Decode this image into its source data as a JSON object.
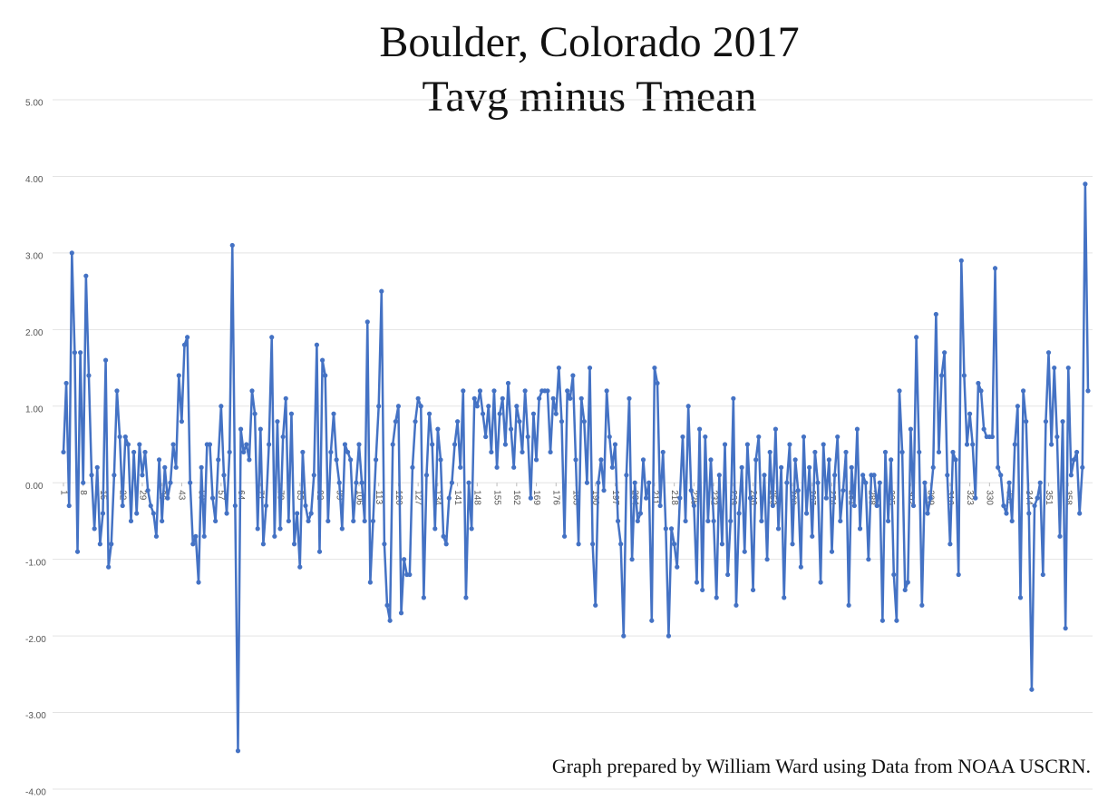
{
  "chart_data": {
    "type": "line",
    "title": [
      "Boulder, Colorado 2017",
      "Tavg minus Tmean"
    ],
    "annotation": "Graph prepared by William Ward using Data from NOAA USCRN.",
    "x": [
      1,
      2,
      3,
      4,
      5,
      6,
      7,
      8,
      9,
      10,
      11,
      12,
      13,
      14,
      15,
      16,
      17,
      18,
      19,
      20,
      21,
      22,
      23,
      24,
      25,
      26,
      27,
      28,
      29,
      30,
      31,
      32,
      33,
      34,
      35,
      36,
      37,
      38,
      39,
      40,
      41,
      42,
      43,
      44,
      45,
      46,
      47,
      48,
      49,
      50,
      51,
      52,
      53,
      54,
      55,
      56,
      57,
      58,
      59,
      60,
      61,
      62,
      63,
      64,
      65,
      66,
      67,
      68,
      69,
      70,
      71,
      72,
      73,
      74,
      75,
      76,
      77,
      78,
      79,
      80,
      81,
      82,
      83,
      84,
      85,
      86,
      87,
      88,
      89,
      90,
      91,
      92,
      93,
      94,
      95,
      96,
      97,
      98,
      99,
      100,
      101,
      102,
      103,
      104,
      105,
      106,
      107,
      108,
      109,
      110,
      111,
      112,
      113,
      114,
      115,
      116,
      117,
      118,
      119,
      120,
      121,
      122,
      123,
      124,
      125,
      126,
      127,
      128,
      129,
      130,
      131,
      132,
      133,
      134,
      135,
      136,
      137,
      138,
      139,
      140,
      141,
      142,
      143,
      144,
      145,
      146,
      147,
      148,
      149,
      150,
      151,
      152,
      153,
      154,
      155,
      156,
      157,
      158,
      159,
      160,
      161,
      162,
      163,
      164,
      165,
      166,
      167,
      168,
      169,
      170,
      171,
      172,
      173,
      174,
      175,
      176,
      177,
      178,
      179,
      180,
      181,
      182,
      183,
      184,
      185,
      186,
      187,
      188,
      189,
      190,
      191,
      192,
      193,
      194,
      195,
      196,
      197,
      198,
      199,
      200,
      201,
      202,
      203,
      204,
      205,
      206,
      207,
      208,
      209,
      210,
      211,
      212,
      213,
      214,
      215,
      216,
      217,
      218,
      219,
      220,
      221,
      222,
      223,
      224,
      225,
      226,
      227,
      228,
      229,
      230,
      231,
      232,
      233,
      234,
      235,
      236,
      237,
      238,
      239,
      240,
      241,
      242,
      243,
      244,
      245,
      246,
      247,
      248,
      249,
      250,
      251,
      252,
      253,
      254,
      255,
      256,
      257,
      258,
      259,
      260,
      261,
      262,
      263,
      264,
      265,
      266,
      267,
      268,
      269,
      270,
      271,
      272,
      273,
      274,
      275,
      276,
      277,
      278,
      279,
      280,
      281,
      282,
      283,
      284,
      285,
      286,
      287,
      288,
      289,
      290,
      291,
      292,
      293,
      294,
      295,
      296,
      297,
      298,
      299,
      300,
      301,
      302,
      303,
      304,
      305,
      306,
      307,
      308,
      309,
      310,
      311,
      312,
      313,
      314,
      315,
      316,
      317,
      318,
      319,
      320,
      321,
      322,
      323,
      324,
      325,
      326,
      327,
      328,
      329,
      330,
      331,
      332,
      333,
      334,
      335,
      336,
      337,
      338,
      339,
      340,
      341,
      342,
      343,
      344,
      345,
      346,
      347,
      348,
      349,
      350,
      351,
      352,
      353,
      354,
      355,
      356,
      357,
      358,
      359,
      360,
      361,
      362,
      363,
      364,
      365
    ],
    "series": [
      {
        "color": "#4472c4",
        "values": [
          0.4,
          1.3,
          -0.3,
          3.0,
          1.7,
          -0.9,
          1.7,
          0.0,
          2.7,
          1.4,
          0.1,
          -0.6,
          0.2,
          -0.8,
          -0.4,
          1.6,
          -1.1,
          -0.8,
          0.1,
          1.2,
          0.6,
          -0.3,
          0.6,
          0.5,
          -0.5,
          0.4,
          -0.4,
          0.5,
          0.1,
          0.4,
          -0.1,
          -0.3,
          -0.4,
          -0.7,
          0.3,
          -0.5,
          0.2,
          -0.2,
          0.0,
          0.5,
          0.2,
          1.4,
          0.8,
          1.8,
          1.9,
          0.0,
          -0.8,
          -0.7,
          -1.3,
          0.2,
          -0.7,
          0.5,
          0.5,
          -0.2,
          -0.5,
          0.3,
          1.0,
          0.1,
          -0.4,
          0.4,
          3.1,
          -0.3,
          -3.5,
          0.7,
          0.4,
          0.5,
          0.3,
          1.2,
          0.9,
          -0.6,
          0.7,
          -0.8,
          -0.3,
          0.5,
          1.9,
          -0.7,
          0.8,
          -0.6,
          0.6,
          1.1,
          -0.5,
          0.9,
          -0.8,
          -0.4,
          -1.1,
          0.4,
          -0.3,
          -0.5,
          -0.4,
          0.1,
          1.8,
          -0.9,
          1.6,
          1.4,
          -0.5,
          0.4,
          0.9,
          0.3,
          0.0,
          -0.6,
          0.5,
          0.4,
          0.3,
          -0.5,
          0.0,
          0.5,
          0.0,
          -0.5,
          2.1,
          -1.3,
          -0.5,
          0.3,
          1.0,
          2.5,
          -0.8,
          -1.6,
          -1.8,
          0.5,
          0.8,
          1.0,
          -1.7,
          -1.0,
          -1.2,
          -1.2,
          0.2,
          0.8,
          1.1,
          1.0,
          -1.5,
          0.1,
          0.9,
          0.5,
          -0.6,
          0.7,
          0.3,
          -0.7,
          -0.8,
          -0.2,
          0.0,
          0.5,
          0.8,
          0.2,
          1.2,
          -1.5,
          0.0,
          -0.6,
          1.1,
          1.0,
          1.2,
          0.9,
          0.6,
          1.0,
          0.4,
          1.2,
          0.2,
          0.9,
          1.1,
          0.5,
          1.3,
          0.7,
          0.2,
          1.0,
          0.8,
          0.4,
          1.2,
          0.6,
          -0.2,
          0.9,
          0.3,
          1.1,
          1.2,
          1.2,
          1.2,
          0.4,
          1.1,
          0.9,
          1.5,
          0.8,
          -0.7,
          1.2,
          1.1,
          1.4,
          0.3,
          -0.8,
          1.1,
          0.8,
          0.0,
          1.5,
          -0.8,
          -1.6,
          0.0,
          0.3,
          -0.1,
          1.2,
          0.6,
          0.2,
          0.5,
          -0.5,
          -0.8,
          -2.0,
          0.1,
          1.1,
          -1.0,
          0.0,
          -0.5,
          -0.4,
          0.3,
          -0.2,
          0.0,
          -1.8,
          1.5,
          1.3,
          -0.3,
          0.4,
          -0.6,
          -2.0,
          -0.6,
          -0.8,
          -1.1,
          -0.2,
          0.6,
          -0.5,
          1.0,
          -0.1,
          -0.3,
          -1.3,
          0.7,
          -1.4,
          0.6,
          -0.5,
          0.3,
          -0.5,
          -1.5,
          0.1,
          -0.8,
          0.5,
          -1.2,
          -0.5,
          1.1,
          -1.6,
          -0.4,
          0.2,
          -0.9,
          0.5,
          -0.2,
          -1.4,
          0.3,
          0.6,
          -0.5,
          0.1,
          -1.0,
          0.4,
          -0.3,
          0.7,
          -0.6,
          0.2,
          -1.5,
          0.0,
          0.5,
          -0.8,
          0.3,
          -0.1,
          -1.1,
          0.6,
          -0.4,
          0.2,
          -0.7,
          0.4,
          0.0,
          -1.3,
          0.5,
          -0.2,
          0.3,
          -0.9,
          0.1,
          0.6,
          -0.5,
          -0.1,
          0.4,
          -1.6,
          0.2,
          -0.3,
          0.7,
          -0.6,
          0.1,
          0.0,
          -1.0,
          0.1,
          0.1,
          -0.3,
          0.0,
          -1.8,
          0.4,
          -0.5,
          0.3,
          -1.2,
          -1.8,
          1.2,
          0.4,
          -1.4,
          -1.3,
          0.7,
          -0.3,
          1.9,
          0.4,
          -1.6,
          0.0,
          -0.4,
          -0.2,
          0.2,
          2.2,
          0.4,
          1.4,
          1.7,
          0.1,
          -0.8,
          0.4,
          0.3,
          -1.2,
          2.9,
          1.4,
          0.5,
          0.9,
          0.5,
          -0.2,
          1.3,
          1.2,
          0.7,
          0.6,
          0.6,
          0.6,
          2.8,
          0.2,
          0.1,
          -0.3,
          -0.4,
          0.0,
          -0.5,
          0.5,
          1.0,
          -1.5,
          1.2,
          0.8,
          -0.4,
          -2.7,
          -0.3,
          -0.2,
          0.0,
          -1.2,
          0.8,
          1.7,
          0.5,
          1.5,
          0.6,
          -0.7,
          0.8,
          -1.9,
          1.5,
          0.1,
          0.3,
          0.4,
          -0.4,
          0.2,
          3.9,
          1.2
        ]
      }
    ],
    "xlim": [
      1,
      365
    ],
    "xticks": [
      1,
      8,
      15,
      22,
      29,
      36,
      43,
      50,
      57,
      64,
      71,
      78,
      85,
      92,
      99,
      106,
      113,
      120,
      127,
      134,
      141,
      148,
      155,
      162,
      169,
      176,
      183,
      190,
      197,
      204,
      211,
      218,
      225,
      232,
      239,
      246,
      253,
      260,
      267,
      274,
      281,
      288,
      295,
      302,
      309,
      316,
      323,
      330,
      337,
      344,
      351,
      358
    ],
    "ylim": [
      -4,
      5
    ],
    "yticks": [
      {
        "value": -4,
        "label": "-4.00"
      },
      {
        "value": -3,
        "label": "-3.00"
      },
      {
        "value": -2,
        "label": "-2.00"
      },
      {
        "value": -1,
        "label": "-1.00"
      },
      {
        "value": 0,
        "label": "0.00"
      },
      {
        "value": 1,
        "label": "1.00"
      },
      {
        "value": 2,
        "label": "2.00"
      },
      {
        "value": 3,
        "label": "3.00"
      },
      {
        "value": 4,
        "label": "4.00"
      },
      {
        "value": 5,
        "label": "5.00"
      }
    ],
    "grid": true
  }
}
